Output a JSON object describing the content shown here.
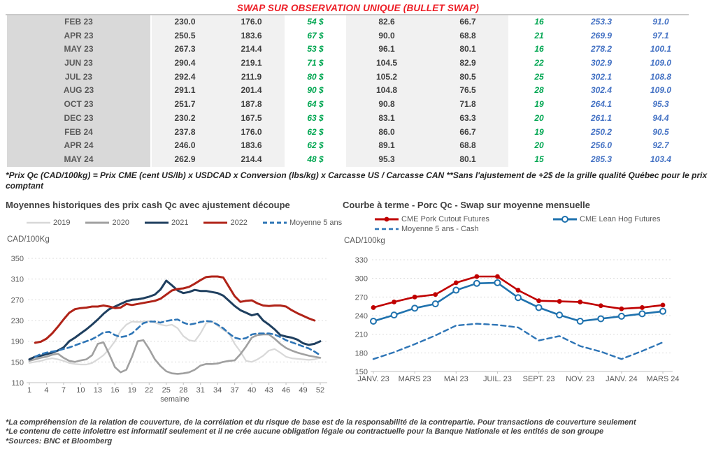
{
  "header": {
    "title": "SWAP SUR OBSERVATION UNIQUE (BULLET SWAP)"
  },
  "table": {
    "rows": [
      {
        "month": "FEB 23",
        "values": [
          "230.0",
          "176.0",
          "54 $",
          "82.6",
          "66.7",
          "16",
          "253.3",
          "91.0"
        ]
      },
      {
        "month": "APR 23",
        "values": [
          "250.5",
          "183.6",
          "67 $",
          "90.0",
          "68.8",
          "21",
          "269.9",
          "97.1"
        ]
      },
      {
        "month": "MAY 23",
        "values": [
          "267.3",
          "214.4",
          "53 $",
          "96.1",
          "80.1",
          "16",
          "278.2",
          "100.1"
        ]
      },
      {
        "month": "JUN 23",
        "values": [
          "290.4",
          "219.1",
          "71 $",
          "104.5",
          "82.9",
          "22",
          "302.9",
          "109.0"
        ]
      },
      {
        "month": "JUL 23",
        "values": [
          "292.4",
          "211.9",
          "80 $",
          "105.2",
          "80.5",
          "25",
          "302.1",
          "108.8"
        ]
      },
      {
        "month": "AUG 23",
        "values": [
          "291.1",
          "201.4",
          "90 $",
          "104.8",
          "76.5",
          "28",
          "302.4",
          "109.0"
        ]
      },
      {
        "month": "OCT 23",
        "values": [
          "251.7",
          "187.8",
          "64 $",
          "90.8",
          "71.8",
          "19",
          "264.1",
          "95.3"
        ]
      },
      {
        "month": "DEC 23",
        "values": [
          "230.2",
          "167.5",
          "63 $",
          "83.1",
          "63.3",
          "20",
          "261.1",
          "94.4"
        ]
      },
      {
        "month": "FEB 24",
        "values": [
          "237.8",
          "176.0",
          "62 $",
          "86.0",
          "66.7",
          "19",
          "250.2",
          "90.5"
        ]
      },
      {
        "month": "APR 24",
        "values": [
          "246.0",
          "183.6",
          "62 $",
          "89.1",
          "68.8",
          "20",
          "256.0",
          "92.7"
        ]
      },
      {
        "month": "MAY 24",
        "values": [
          "262.9",
          "214.4",
          "48 $",
          "95.3",
          "80.1",
          "15",
          "285.3",
          "103.4"
        ]
      }
    ]
  },
  "table_footnote": "*Prix Qc (CAD/100kg) = Prix CME (cent US/lb) x USDCAD x Conversion (lbs/kg) x Carcasse US / Carcasse CAN **Sans l'ajustement de +2$ de la grille qualité Québec pour le prix comptant",
  "chart_data": [
    {
      "type": "line",
      "title": "Moyennes historiques des prix cash Qc avec ajustement découpe",
      "ylabel": "CAD/100Kg",
      "xlabel": "semaine",
      "ylim": [
        110,
        350
      ],
      "ytick_step": 40,
      "grid": true,
      "legend_position": "top",
      "xticks": [
        {
          "i": 0,
          "label": "1"
        },
        {
          "i": 3,
          "label": "4"
        },
        {
          "i": 6,
          "label": "7"
        },
        {
          "i": 9,
          "label": "10"
        },
        {
          "i": 12,
          "label": "13"
        },
        {
          "i": 15,
          "label": "16"
        },
        {
          "i": 18,
          "label": "19"
        },
        {
          "i": 21,
          "label": "22"
        },
        {
          "i": 24,
          "label": "25"
        },
        {
          "i": 27,
          "label": "28"
        },
        {
          "i": 30,
          "label": "31"
        },
        {
          "i": 33,
          "label": "34"
        },
        {
          "i": 36,
          "label": "37"
        },
        {
          "i": 39,
          "label": "40"
        },
        {
          "i": 42,
          "label": "43"
        },
        {
          "i": 45,
          "label": "46"
        },
        {
          "i": 48,
          "label": "49"
        },
        {
          "i": 51,
          "label": "52"
        }
      ],
      "series": [
        {
          "name": "2019",
          "color": "#D8D8D8",
          "width": 2.2,
          "values": [
            148,
            150,
            152,
            155,
            157,
            155,
            152,
            148,
            146,
            145,
            145,
            148,
            155,
            163,
            175,
            190,
            210,
            222,
            228,
            227,
            228,
            229,
            226,
            222,
            220,
            222,
            215,
            200,
            192,
            190,
            205,
            225,
            228,
            220,
            212,
            205,
            185,
            170,
            152,
            150,
            155,
            162,
            172,
            175,
            168,
            160,
            157,
            156,
            155,
            154,
            155,
            158
          ]
        },
        {
          "name": "2020",
          "color": "#A0A0A0",
          "width": 2.6,
          "values": [
            152,
            155,
            158,
            160,
            164,
            166,
            158,
            152,
            150,
            153,
            155,
            163,
            185,
            188,
            165,
            140,
            130,
            135,
            160,
            190,
            192,
            175,
            155,
            142,
            132,
            128,
            127,
            128,
            130,
            135,
            143,
            146,
            146,
            147,
            150,
            152,
            153,
            165,
            180,
            197,
            202,
            203,
            203,
            195,
            185,
            177,
            172,
            168,
            165,
            162,
            160,
            158
          ]
        },
        {
          "name": "2021",
          "color": "#1F3F5F",
          "width": 3,
          "values": [
            155,
            160,
            162,
            165,
            168,
            172,
            178,
            190,
            197,
            205,
            213,
            222,
            232,
            243,
            252,
            257,
            262,
            267,
            270,
            271,
            273,
            276,
            280,
            290,
            307,
            298,
            288,
            283,
            285,
            289,
            287,
            287,
            285,
            283,
            278,
            268,
            258,
            250,
            245,
            240,
            243,
            230,
            222,
            213,
            202,
            199,
            197,
            193,
            186,
            183,
            185,
            190
          ]
        },
        {
          "name": "2022",
          "color": "#B02318",
          "width": 3,
          "values": [
            null,
            187,
            189,
            195,
            205,
            218,
            232,
            245,
            252,
            254,
            255,
            257,
            257,
            259,
            257,
            254,
            255,
            262,
            260,
            262,
            264,
            266,
            268,
            272,
            280,
            288,
            291,
            292,
            295,
            301,
            308,
            314,
            315,
            315,
            313,
            295,
            277,
            266,
            268,
            269,
            263,
            259,
            258,
            259,
            259,
            257,
            250,
            244,
            239,
            234,
            230,
            null
          ]
        },
        {
          "name": "Moyenne 5 ans",
          "color": "#2E75B6",
          "width": 2.6,
          "dash": "7 5",
          "values": [
            null,
            160,
            165,
            168,
            170,
            172,
            175,
            178,
            182,
            186,
            190,
            194,
            200,
            207,
            208,
            202,
            198,
            200,
            205,
            215,
            225,
            228,
            228,
            226,
            229,
            231,
            232,
            226,
            222,
            224,
            227,
            229,
            228,
            222,
            215,
            205,
            197,
            194,
            196,
            203,
            205,
            205,
            205,
            203,
            198,
            192,
            188,
            184,
            180,
            176,
            170,
            163
          ]
        }
      ]
    },
    {
      "type": "line",
      "title": "Courbe à terme - Porc Qc - Swap sur moyenne mensuelle",
      "ylabel": "CAD/100kg",
      "xlabel": "",
      "ylim": [
        150,
        330
      ],
      "ytick_step": 30,
      "grid": true,
      "legend_position": "top",
      "xticks": [
        {
          "i": 0,
          "label": "JANV. 23"
        },
        {
          "i": 2,
          "label": "MARS 23"
        },
        {
          "i": 4,
          "label": "MAI 23"
        },
        {
          "i": 6,
          "label": "JUIL. 23"
        },
        {
          "i": 8,
          "label": "SEPT. 23"
        },
        {
          "i": 10,
          "label": "NOV. 23"
        },
        {
          "i": 12,
          "label": "JANV. 24"
        },
        {
          "i": 14,
          "label": "MARS 24"
        }
      ],
      "series": [
        {
          "name": "CME Pork Cutout Futures",
          "color": "#C00000",
          "width": 2.6,
          "marker": "filled",
          "values": [
            253,
            262,
            270,
            274,
            293,
            303,
            303,
            281,
            264,
            263,
            262,
            256,
            251,
            253,
            257
          ]
        },
        {
          "name": "CME Lean Hog Futures",
          "color": "#1F72AE",
          "width": 2.6,
          "marker": "open",
          "values": [
            231,
            241,
            252,
            259,
            281,
            292,
            293,
            269,
            253,
            241,
            231,
            235,
            239,
            243,
            247
          ]
        },
        {
          "name": "Moyenne 5 ans - Cash",
          "color": "#2E75B6",
          "width": 2.4,
          "dash": "7 5",
          "values": [
            170,
            181,
            194,
            208,
            224,
            227,
            225,
            221,
            200,
            207,
            191,
            182,
            170,
            183,
            197
          ]
        }
      ]
    }
  ],
  "footer": {
    "line1": "*La compréhension de la relation de couverture, de la corrélation et du risque de base est de la responsabilité de la contrepartie. Pour transactions de couverture seulement",
    "line2": "*Le contenu de cette infolettre est informatif seulement et il ne crée aucune obligation légale ou contractuelle pour la Banque Nationale et les entités de son groupe",
    "line3": "*Sources: BNC et Bloomberg"
  }
}
